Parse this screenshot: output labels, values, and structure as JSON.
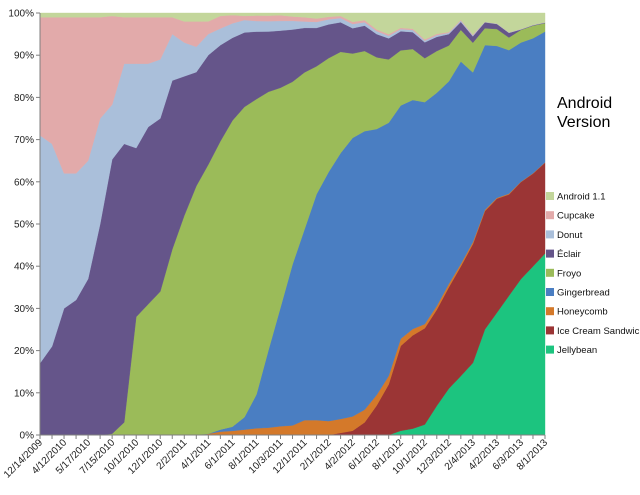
{
  "chart_data": {
    "type": "area",
    "stacked": "percent",
    "legend_title": "Android Version",
    "legend_position": "right",
    "grid": false,
    "ylim": [
      0,
      100
    ],
    "y_ticks": [
      "0%",
      "10%",
      "20%",
      "30%",
      "40%",
      "50%",
      "60%",
      "70%",
      "80%",
      "90%",
      "100%"
    ],
    "x_tick_labels": [
      "12/14/2009",
      "4/12/2010",
      "5/17/2010",
      "7/15/2010",
      "10/1/2010",
      "12/1/2010",
      "2/2/2011",
      "4/1/2011",
      "6/1/2011",
      "8/1/2011",
      "10/3/2011",
      "12/1/2011",
      "2/1/2012",
      "4/2/2012",
      "6/1/2012",
      "8/1/2012",
      "10/1/2012",
      "12/3/2012",
      "2/4/2013",
      "4/2/2013",
      "6/3/2013",
      "8/1/2013"
    ],
    "x_tick_index": [
      0,
      2,
      4,
      6,
      8,
      10,
      12,
      14,
      16,
      18,
      20,
      22,
      24,
      26,
      28,
      30,
      32,
      34,
      36,
      38,
      40,
      42
    ],
    "series": [
      {
        "name": "Jellybean",
        "color": "#1cc47f",
        "values": [
          0,
          0,
          0,
          0,
          0,
          0,
          0,
          0,
          0,
          0,
          0,
          0,
          0,
          0,
          0,
          0,
          0,
          0,
          0,
          0,
          0,
          0,
          0,
          0,
          0,
          0,
          0,
          0,
          0,
          0,
          1,
          1.5,
          2.5,
          7,
          11,
          14,
          17,
          25,
          29,
          33,
          37,
          40,
          43
        ]
      },
      {
        "name": "Ice Cream Sandwich",
        "color": "#9b3535",
        "values": [
          0,
          0,
          0,
          0,
          0,
          0,
          0,
          0,
          0,
          0,
          0,
          0,
          0,
          0,
          0,
          0,
          0,
          0,
          0,
          0,
          0,
          0,
          0,
          0,
          0,
          0.5,
          1,
          3,
          7,
          12,
          20,
          22,
          23,
          23,
          24,
          26,
          28,
          28,
          27,
          24,
          23,
          22,
          21.5
        ]
      },
      {
        "name": "Honeycomb",
        "color": "#d4792a",
        "values": [
          0,
          0,
          0,
          0,
          0,
          0,
          0,
          0,
          0,
          0,
          0,
          0,
          0,
          0,
          0.3,
          0.8,
          1,
          1.3,
          1.6,
          1.7,
          2,
          2.2,
          3.5,
          3.5,
          3.3,
          3.3,
          3.4,
          3,
          2.5,
          2,
          1.7,
          1.5,
          1,
          0.9,
          0.8,
          0.6,
          0.5,
          0.3,
          0.2,
          0.2,
          0.1,
          0.1,
          0.1
        ]
      },
      {
        "name": "Gingerbread",
        "color": "#4a7ec2",
        "values": [
          0,
          0,
          0,
          0,
          0,
          0,
          0,
          0,
          0,
          0,
          0,
          0,
          0,
          0,
          0,
          0.5,
          1,
          3,
          8,
          18,
          27,
          37,
          45,
          53,
          59,
          63,
          66,
          66,
          63,
          60,
          55,
          54,
          53,
          51,
          48,
          48,
          40,
          39,
          36,
          34,
          33,
          32,
          31
        ]
      },
      {
        "name": "Froyo",
        "color": "#9bbb59",
        "values": [
          0,
          0,
          0,
          0,
          0,
          0,
          0.3,
          3,
          28,
          31,
          34,
          44,
          52,
          59,
          64,
          69,
          74,
          75,
          70,
          60,
          50,
          42,
          37,
          30,
          27,
          24,
          20,
          19,
          17,
          15,
          13,
          12,
          10.5,
          10,
          8.5,
          7.5,
          7,
          4,
          4,
          3,
          3,
          3,
          2
        ]
      },
      {
        "name": "Éclair",
        "color": "#65558a",
        "values": [
          17,
          21,
          30,
          32,
          37,
          50,
          65,
          66,
          40,
          42,
          41,
          40,
          33,
          27,
          26,
          23,
          20,
          18,
          16,
          14,
          13,
          12,
          10.5,
          9,
          8,
          7,
          6,
          6,
          5.5,
          5,
          4.5,
          4,
          3.8,
          3.4,
          2.7,
          1.9,
          1.5,
          1.4,
          1.2,
          1.1,
          0.1,
          0.1,
          0.1
        ]
      },
      {
        "name": "Donut",
        "color": "#aabfda",
        "values": [
          54,
          48,
          32,
          30,
          28,
          25,
          13,
          19,
          20,
          15,
          14,
          11,
          8,
          6,
          5,
          4,
          3.5,
          3,
          2.5,
          2.4,
          2.2,
          2,
          1.5,
          1.4,
          1.2,
          1,
          1,
          0.8,
          0.7,
          0.6,
          0.5,
          0.5,
          0.4,
          0.4,
          0.3,
          0.3,
          0.2,
          0.1,
          0.1,
          0.1,
          0.1,
          0.1,
          0.1
        ]
      },
      {
        "name": "Cupcake",
        "color": "#e2aaaa",
        "values": [
          28,
          30,
          37,
          37,
          34,
          24,
          21,
          11,
          11,
          11,
          10,
          4,
          5,
          6,
          3,
          3,
          2,
          1,
          1.3,
          1.3,
          1.3,
          1,
          1,
          0.8,
          0.6,
          0.5,
          0.5,
          0.5,
          0.4,
          0.4,
          0.3,
          0.3,
          0.3,
          0.3,
          0.2,
          0.2,
          0.2,
          0,
          0,
          0,
          0,
          0,
          0
        ]
      },
      {
        "name": "Android 1.1",
        "color": "#c3d69b",
        "values": [
          1,
          1,
          1,
          1,
          1,
          1,
          0.7,
          1,
          1,
          1,
          1,
          1,
          2,
          2,
          2,
          0.7,
          0.5,
          0.7,
          0.6,
          0.6,
          0.5,
          0.8,
          1,
          1.3,
          0.9,
          0.7,
          2.1,
          1.7,
          3.9,
          5,
          3.5,
          3.7,
          6.3,
          5,
          4.5,
          1.6,
          5.1,
          2.1,
          2.5,
          4.6,
          3.8,
          2.8,
          2.2
        ]
      }
    ]
  }
}
